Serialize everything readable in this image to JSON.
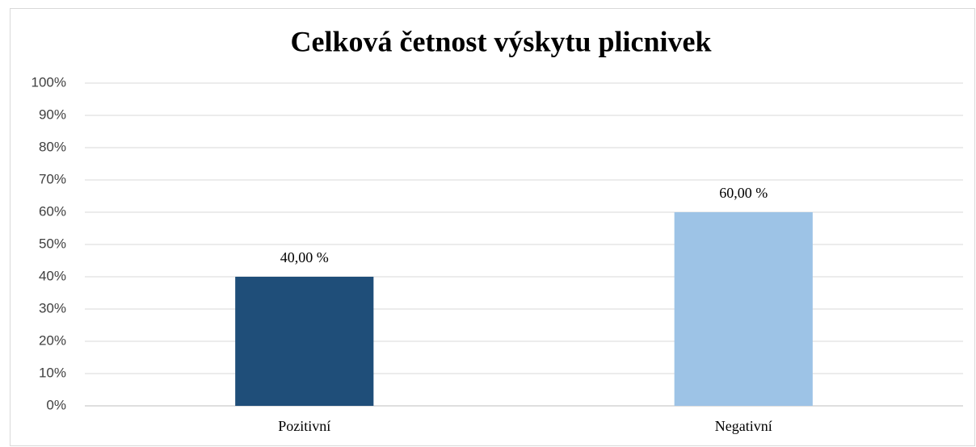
{
  "chart_data": {
    "type": "bar",
    "title": "Celková četnost výskytu plicnivek",
    "categories": [
      "Pozitivní",
      "Negativní"
    ],
    "values": [
      40,
      60
    ],
    "value_labels": [
      "40,00 %",
      "60,00 %"
    ],
    "colors": [
      "#1f4e79",
      "#9dc3e6"
    ],
    "ylim": [
      0,
      100
    ],
    "yticks": [
      {
        "value": 0,
        "label": "0%"
      },
      {
        "value": 10,
        "label": "10%"
      },
      {
        "value": 20,
        "label": "20%"
      },
      {
        "value": 30,
        "label": "30%"
      },
      {
        "value": 40,
        "label": "40%"
      },
      {
        "value": 50,
        "label": "50%"
      },
      {
        "value": 60,
        "label": "60%"
      },
      {
        "value": 70,
        "label": "70%"
      },
      {
        "value": 80,
        "label": "80%"
      },
      {
        "value": 90,
        "label": "90%"
      },
      {
        "value": 100,
        "label": "100%"
      }
    ],
    "grid": true
  }
}
